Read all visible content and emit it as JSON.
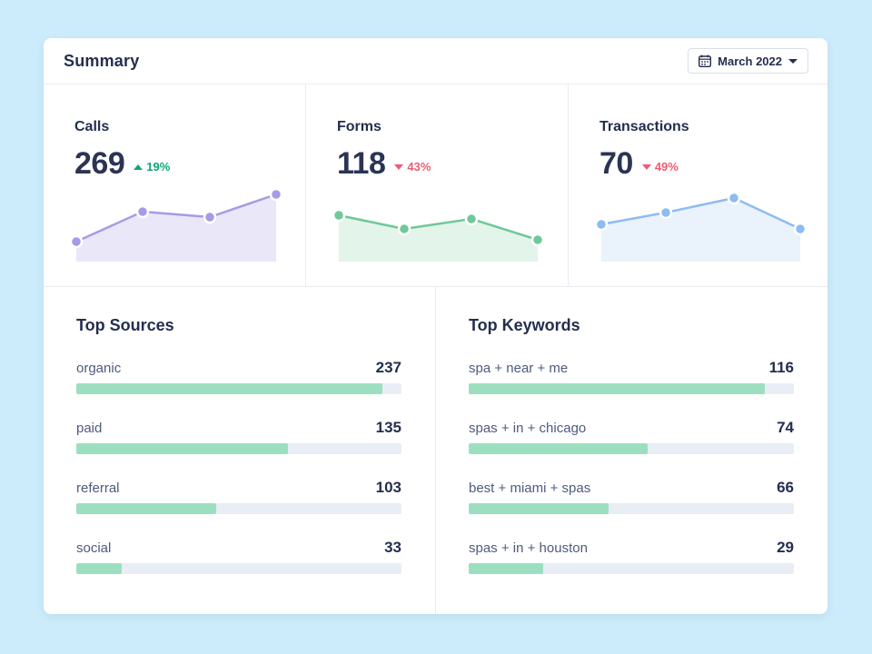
{
  "page": {
    "background_color": "#cdecfb",
    "card_color": "#ffffff",
    "divider_color": "#e8ecf2"
  },
  "header": {
    "title": "Summary",
    "date_selector": {
      "label": "March 2022",
      "icon": "calendar-icon",
      "caret": "chevron-down-icon"
    }
  },
  "stats": [
    {
      "label": "Calls",
      "value": "269",
      "delta": "19%",
      "direction": "up",
      "delta_color": "#0ca678",
      "line_color": "#a89ae5",
      "fill_color": "#eae7f8",
      "points": [
        [
          2,
          56
        ],
        [
          75,
          23
        ],
        [
          149,
          29
        ],
        [
          222,
          4
        ]
      ],
      "baseline": 78
    },
    {
      "label": "Forms",
      "value": "118",
      "delta": "43%",
      "direction": "down",
      "delta_color": "#ee5b72",
      "line_color": "#70c89a",
      "fill_color": "#e3f4ea",
      "points": [
        [
          2,
          27
        ],
        [
          74,
          42
        ],
        [
          148,
          31
        ],
        [
          221,
          54
        ]
      ],
      "baseline": 78
    },
    {
      "label": "Transactions",
      "value": "70",
      "delta": "49%",
      "direction": "down",
      "delta_color": "#ee5b72",
      "line_color": "#8dbcf0",
      "fill_color": "#eaf2fc",
      "points": [
        [
          2,
          37
        ],
        [
          73,
          24
        ],
        [
          148,
          8
        ],
        [
          221,
          42
        ]
      ],
      "baseline": 78
    }
  ],
  "top_sources": {
    "title": "Top Sources",
    "rows": [
      {
        "label": "organic",
        "value": "237",
        "percent": 94
      },
      {
        "label": "paid",
        "value": "135",
        "percent": 65
      },
      {
        "label": "referral",
        "value": "103",
        "percent": 43
      },
      {
        "label": "social",
        "value": "33",
        "percent": 14
      }
    ]
  },
  "top_keywords": {
    "title": "Top Keywords",
    "rows": [
      {
        "label": "spa + near + me",
        "value": "116",
        "percent": 91
      },
      {
        "label": "spas + in + chicago",
        "value": "74",
        "percent": 55
      },
      {
        "label": "best + miami + spas",
        "value": "66",
        "percent": 43
      },
      {
        "label": "spas + in + houston",
        "value": "29",
        "percent": 23
      }
    ]
  },
  "colors": {
    "bar_fill": "#9cdfc0",
    "bar_track": "#e9edf4",
    "heading": "#242e4e",
    "row_label": "#4d5b7c"
  },
  "chart_data": [
    {
      "type": "area",
      "title": "Calls sparkline",
      "series": [
        {
          "name": "Calls",
          "values": [
            22,
            55,
            49,
            74
          ]
        }
      ],
      "x": [
        1,
        2,
        3,
        4
      ],
      "legend_position": "none",
      "grid": false
    },
    {
      "type": "area",
      "title": "Forms sparkline",
      "series": [
        {
          "name": "Forms",
          "values": [
            51,
            36,
            47,
            24
          ]
        }
      ],
      "x": [
        1,
        2,
        3,
        4
      ],
      "legend_position": "none",
      "grid": false
    },
    {
      "type": "area",
      "title": "Transactions sparkline",
      "series": [
        {
          "name": "Transactions",
          "values": [
            41,
            54,
            70,
            36
          ]
        }
      ],
      "x": [
        1,
        2,
        3,
        4
      ],
      "legend_position": "none",
      "grid": false
    },
    {
      "type": "bar",
      "title": "Top Sources",
      "categories": [
        "organic",
        "paid",
        "referral",
        "social"
      ],
      "values": [
        237,
        135,
        103,
        33
      ]
    },
    {
      "type": "bar",
      "title": "Top Keywords",
      "categories": [
        "spa + near + me",
        "spas + in + chicago",
        "best + miami + spas",
        "spas + in + houston"
      ],
      "values": [
        116,
        74,
        66,
        29
      ]
    }
  ]
}
